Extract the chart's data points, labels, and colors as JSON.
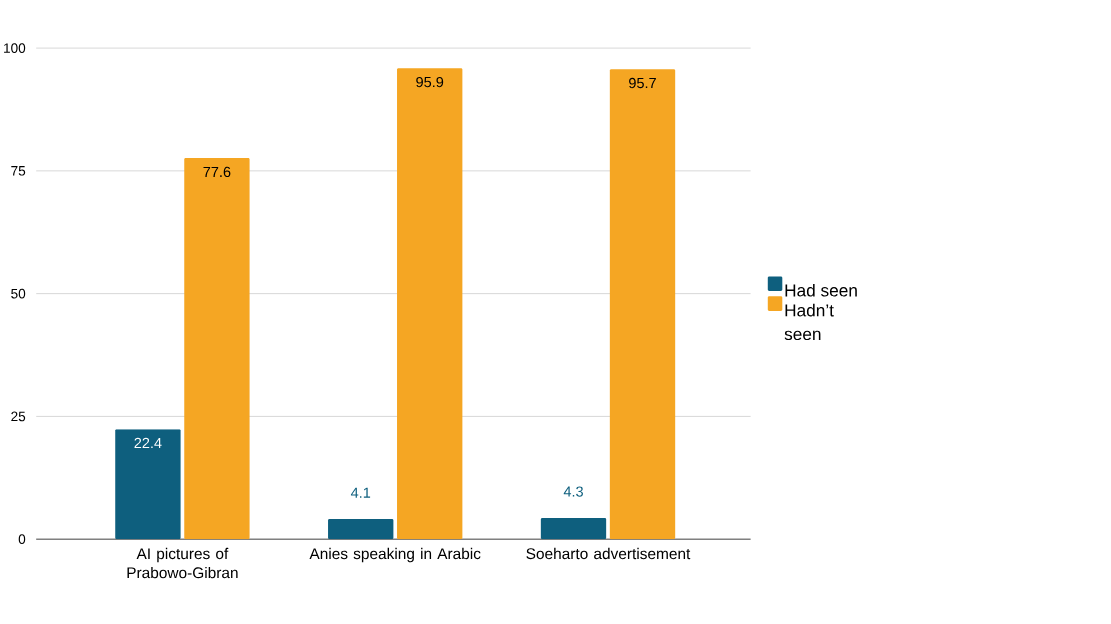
{
  "chart_data": {
    "type": "bar",
    "categories": [
      "AI pictures of Prabowo-Gibran",
      "Anies speaking in Arabic",
      "Soeharto advertisement"
    ],
    "series": [
      {
        "name": "Had seen",
        "color": "#0e5f7e",
        "values": [
          22.4,
          4.1,
          4.3
        ]
      },
      {
        "name": "Hadn’t seen",
        "color": "#f5a623",
        "values": [
          77.6,
          95.9,
          95.7
        ]
      }
    ],
    "ylim": [
      0,
      100
    ],
    "yticks": [
      0,
      25,
      50,
      75,
      100
    ],
    "grid": "y",
    "legend": "right",
    "data_labels": true
  }
}
